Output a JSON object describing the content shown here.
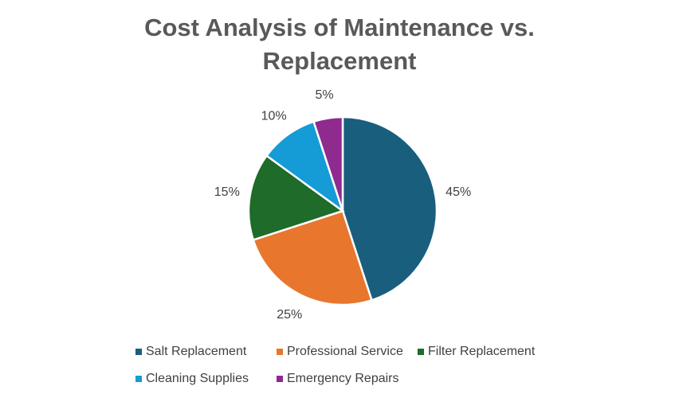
{
  "chart_data": {
    "type": "pie",
    "title": "Cost Analysis of Maintenance vs. Replacement",
    "categories": [
      "Salt Replacement",
      "Professional Service",
      "Filter Replacement",
      "Cleaning Supplies",
      "Emergency Repairs"
    ],
    "values": [
      45,
      25,
      15,
      10,
      5
    ],
    "value_labels": [
      "45%",
      "25%",
      "15%",
      "10%",
      "5%"
    ],
    "colors": [
      "#1a5e7e",
      "#e8762d",
      "#1e6b2a",
      "#159bd6",
      "#8f2a8e"
    ],
    "legend": "bottom"
  }
}
